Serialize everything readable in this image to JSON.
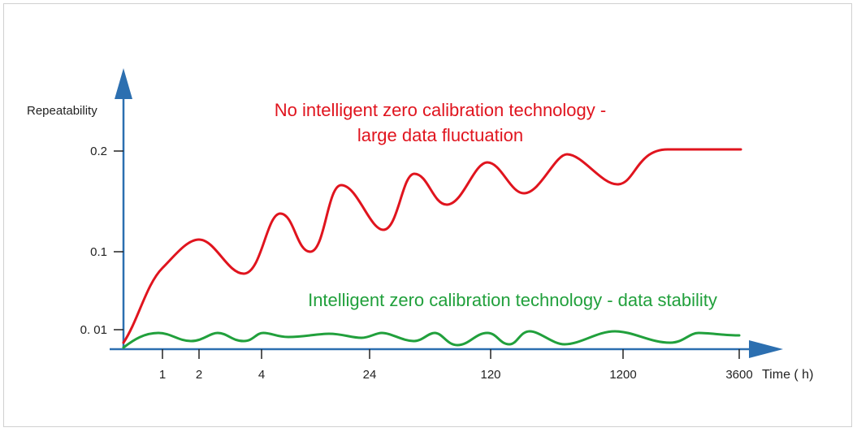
{
  "chart_data": {
    "type": "line",
    "ylabel": "Repeatability",
    "xlabel": "Time ( h)",
    "x_ticks": [
      "1",
      "2",
      "4",
      "24",
      "120",
      "1200",
      "3600"
    ],
    "y_ticks": [
      "0.2",
      "0.1",
      "0. 01"
    ],
    "series": [
      {
        "color": "#e0141e",
        "points": [
          [
            "0",
            0.005
          ],
          [
            "1",
            0.07
          ],
          [
            "2",
            0.11
          ],
          [
            "4",
            0.075
          ],
          [
            "8",
            0.13
          ],
          [
            "12",
            0.1
          ],
          [
            "16",
            0.16
          ],
          [
            "24",
            0.12
          ],
          [
            "40",
            0.175
          ],
          [
            "60",
            0.14
          ],
          [
            "120",
            0.185
          ],
          [
            "180",
            0.155
          ],
          [
            "600",
            0.195
          ],
          [
            "1200",
            0.165
          ],
          [
            "2400",
            0.2
          ],
          [
            "3600",
            0.2
          ]
        ]
      },
      {
        "color": "#21a03c",
        "points": [
          [
            "0",
            0.0
          ],
          [
            "1",
            0.017
          ],
          [
            "2",
            0.01
          ],
          [
            "4",
            0.018
          ],
          [
            "24",
            0.017
          ],
          [
            "120",
            0.017
          ],
          [
            "1200",
            0.02
          ],
          [
            "3600",
            0.016
          ]
        ]
      }
    ],
    "annotations": [
      {
        "lines": [
          "No intelligent zero calibration technology -",
          "large data fluctuation"
        ],
        "color": "#e0141e"
      },
      {
        "lines": [
          "Intelligent zero calibration technology - data stability"
        ],
        "color": "#21a03c"
      }
    ],
    "colors": {
      "axis": "#2c6fb0",
      "tick": "#222222"
    }
  }
}
